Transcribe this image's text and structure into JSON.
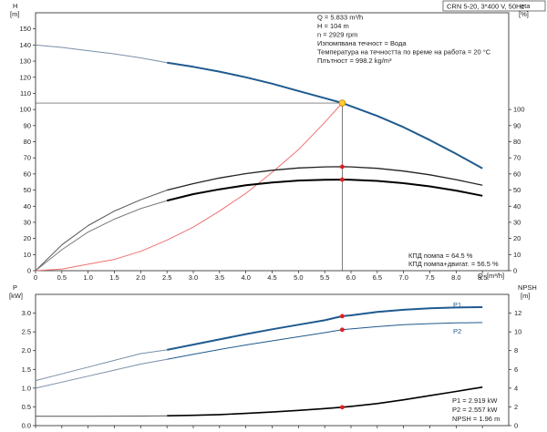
{
  "header_box": "CRN 5-20, 3*400 V, 50Hz",
  "top_chart": {
    "y_left_label": "H",
    "y_left_unit": "[m]",
    "y_right_label": "eta",
    "y_right_unit": "[%]",
    "x_label": "Q",
    "x_unit": "[m³/h]",
    "info_lines": [
      "Q = 5.833 m³/h",
      "H = 104 m",
      "n = 2929 rpm",
      "Изпомпвана течност = Вода",
      "Температура на течността по време на работа = 20 °C",
      "Плътност = 998.2 kg/m³"
    ],
    "eff_notes": [
      "КПД помпа = 64.5 %",
      "КПД помпа+двигат. = 56.5 %"
    ]
  },
  "bottom_chart": {
    "y_left_label": "P",
    "y_left_unit": "[kW]",
    "y_right_label": "NPSH",
    "y_right_unit": "[m]",
    "series_labels": [
      "P1",
      "P2"
    ],
    "notes": [
      "P1 = 2.919 kW",
      "P2 = 2.557 kW",
      "NPSH = 1.96 m"
    ]
  },
  "chart_data": [
    {
      "type": "line",
      "title": "",
      "xlabel": "Q [m³/h]",
      "ylabel": "H [m]",
      "y2label": "eta [%]",
      "xlim": [
        0,
        9
      ],
      "ylim": [
        0,
        160
      ],
      "y2lim": [
        0,
        160
      ],
      "xticks": [
        0,
        0.5,
        1.0,
        1.5,
        2.0,
        2.5,
        3.0,
        3.5,
        4.0,
        4.5,
        5.0,
        5.5,
        6.0,
        6.5,
        7.0,
        7.5,
        8.0,
        8.5
      ],
      "yticks": [
        0,
        10,
        20,
        30,
        40,
        50,
        60,
        70,
        80,
        90,
        100,
        110,
        120,
        130,
        140,
        150
      ],
      "y2ticks": [
        0,
        10,
        20,
        30,
        40,
        50,
        60,
        70,
        80,
        90,
        100
      ],
      "grid": false,
      "duty_point": {
        "q": 5.833,
        "h": 104,
        "eta_pump": 64.5,
        "eta_total": 56.5
      },
      "series": [
        {
          "axis": "left",
          "color": "#7a8fa8",
          "width": 1,
          "x": [
            0,
            0.5,
            1.0,
            1.5,
            2.0,
            2.5
          ],
          "y": [
            140,
            138.5,
            136.5,
            134.5,
            132,
            129
          ]
        },
        {
          "axis": "left",
          "color": "#1f5a8f",
          "width": 2,
          "x": [
            2.5,
            3.0,
            3.5,
            4.0,
            4.5,
            5.0,
            5.5,
            5.833,
            6.0,
            6.5,
            7.0,
            7.5,
            8.0,
            8.5
          ],
          "y": [
            129,
            126.5,
            123.5,
            120,
            116,
            111.5,
            107,
            104,
            102,
            96,
            89,
            81,
            72.5,
            63.5
          ]
        },
        {
          "axis": "right",
          "color": "#f07070",
          "width": 1,
          "x": [
            0,
            0.5,
            1.0,
            1.5,
            2.0,
            2.5,
            3.0,
            3.5,
            4.0,
            4.5,
            5.0,
            5.5,
            5.833
          ],
          "y": [
            0,
            1,
            4,
            7,
            12,
            19,
            27,
            37,
            48,
            61,
            75,
            92,
            104
          ]
        },
        {
          "axis": "right",
          "color": "#555555",
          "width": 1,
          "x": [
            0,
            0.5,
            1.0,
            1.5,
            2.0,
            2.5
          ],
          "y": [
            0,
            16,
            28,
            37,
            44,
            50
          ]
        },
        {
          "axis": "right",
          "color": "#222222",
          "width": 1.3,
          "x": [
            2.5,
            3.0,
            3.5,
            4.0,
            4.5,
            5.0,
            5.5,
            5.833,
            6.0,
            6.5,
            7.0,
            7.5,
            8.0,
            8.5
          ],
          "y": [
            50,
            54,
            57.5,
            60.2,
            62.3,
            63.7,
            64.4,
            64.5,
            64.4,
            63.5,
            61.8,
            59.5,
            56.5,
            53
          ]
        },
        {
          "axis": "right",
          "color": "#7a7a7a",
          "width": 1,
          "x": [
            0,
            0.5,
            1.0,
            1.5,
            2.0,
            2.5
          ],
          "y": [
            0,
            13,
            24,
            32,
            38.5,
            43.5
          ]
        },
        {
          "axis": "right",
          "color": "#000000",
          "width": 2,
          "x": [
            2.5,
            3.0,
            3.5,
            4.0,
            4.5,
            5.0,
            5.5,
            5.833,
            6.0,
            6.5,
            7.0,
            7.5,
            8.0,
            8.5
          ],
          "y": [
            43.5,
            47.5,
            50.5,
            53,
            54.7,
            55.9,
            56.4,
            56.5,
            56.4,
            55.7,
            54.3,
            52.3,
            49.7,
            46.5
          ]
        }
      ]
    },
    {
      "type": "line",
      "title": "",
      "xlabel": "Q [m³/h]",
      "ylabel": "P [kW]",
      "y2label": "NPSH [m]",
      "xlim": [
        0,
        9
      ],
      "ylim": [
        0,
        3.5
      ],
      "y2lim": [
        0,
        14
      ],
      "yticks": [
        0.0,
        0.5,
        1.0,
        1.5,
        2.0,
        2.5,
        3.0
      ],
      "y2ticks": [
        0,
        2,
        4,
        6,
        8,
        10,
        12
      ],
      "grid": false,
      "series": [
        {
          "name": "P1",
          "axis": "left",
          "color": "#7a8fa8",
          "width": 1,
          "x": [
            0,
            0.5,
            1.0,
            1.5,
            2.0,
            2.5
          ],
          "y": [
            1.2,
            1.38,
            1.56,
            1.74,
            1.92,
            2.02
          ]
        },
        {
          "name": "P1",
          "axis": "left",
          "color": "#1f5a8f",
          "width": 2,
          "x": [
            2.5,
            3.0,
            3.5,
            4.0,
            4.5,
            5.0,
            5.5,
            5.833,
            6.0,
            6.5,
            7.0,
            7.5,
            8.0,
            8.5
          ],
          "y": [
            2.02,
            2.16,
            2.3,
            2.44,
            2.57,
            2.69,
            2.81,
            2.919,
            2.94,
            3.03,
            3.09,
            3.13,
            3.15,
            3.16
          ]
        },
        {
          "name": "P2",
          "axis": "left",
          "color": "#7a8fa8",
          "width": 1,
          "x": [
            0,
            0.5,
            1.0,
            1.5,
            2.0,
            2.5
          ],
          "y": [
            1.0,
            1.16,
            1.32,
            1.48,
            1.64,
            1.77
          ]
        },
        {
          "name": "P2",
          "axis": "left",
          "color": "#1f5a8f",
          "width": 1,
          "x": [
            2.5,
            3.0,
            3.5,
            4.0,
            4.5,
            5.0,
            5.5,
            5.833,
            6.0,
            6.5,
            7.0,
            7.5,
            8.0,
            8.5
          ],
          "y": [
            1.77,
            1.9,
            2.03,
            2.15,
            2.26,
            2.37,
            2.48,
            2.557,
            2.58,
            2.64,
            2.69,
            2.72,
            2.74,
            2.75
          ]
        },
        {
          "name": "NPSH",
          "axis": "right",
          "color": "#555555",
          "width": 1,
          "x": [
            0,
            1.0,
            2.0,
            2.5
          ],
          "y": [
            1.0,
            1.0,
            1.02,
            1.05
          ]
        },
        {
          "name": "NPSH",
          "axis": "right",
          "color": "#000000",
          "width": 1.6,
          "x": [
            2.5,
            3.0,
            3.5,
            4.0,
            4.5,
            5.0,
            5.5,
            5.833,
            6.0,
            6.5,
            7.0,
            7.5,
            8.0,
            8.5
          ],
          "y": [
            1.05,
            1.1,
            1.18,
            1.3,
            1.45,
            1.62,
            1.82,
            1.96,
            2.05,
            2.35,
            2.75,
            3.2,
            3.65,
            4.1
          ]
        }
      ]
    }
  ]
}
